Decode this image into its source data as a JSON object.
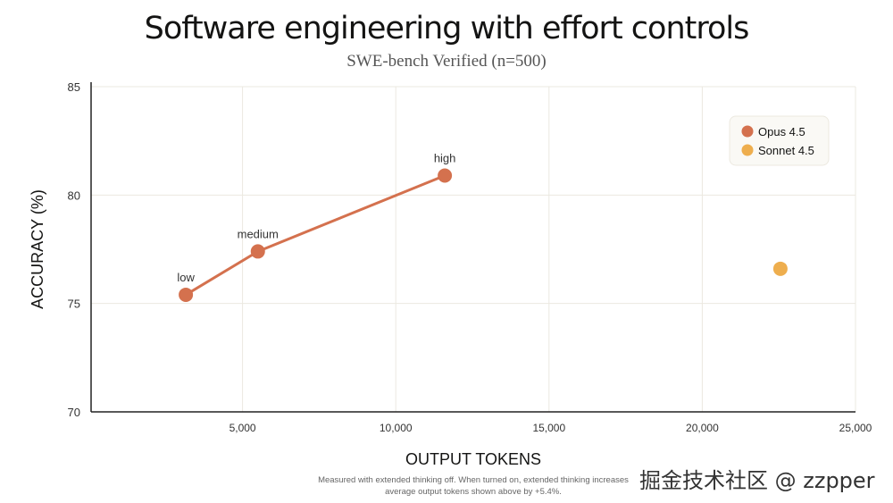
{
  "chart_data": {
    "type": "scatter",
    "title": "Software engineering with effort controls",
    "subtitle": "SWE-bench Verified (n=500)",
    "xlabel": "OUTPUT TOKENS",
    "ylabel": "ACCURACY (%)",
    "xlim": [
      0,
      25000
    ],
    "ylim": [
      70,
      85
    ],
    "xticks": [
      "5,000",
      "10,000",
      "15,000",
      "20,000",
      "25,000"
    ],
    "xtick_values": [
      5000,
      10000,
      15000,
      20000,
      25000
    ],
    "yticks": [
      "70",
      "75",
      "80",
      "85"
    ],
    "ytick_values": [
      70,
      75,
      80,
      85
    ],
    "grid": true,
    "legend_position": "top-right",
    "series": [
      {
        "name": "Opus 4.5",
        "color": "#d4714e",
        "connected": true,
        "points": [
          {
            "label": "low",
            "x": 3150,
            "y": 75.4
          },
          {
            "label": "medium",
            "x": 5500,
            "y": 77.4
          },
          {
            "label": "high",
            "x": 11600,
            "y": 80.9
          }
        ]
      },
      {
        "name": "Sonnet 4.5",
        "color": "#eeae4e",
        "connected": false,
        "points": [
          {
            "label": "",
            "x": 22550,
            "y": 76.6
          }
        ]
      }
    ],
    "footnote": "Measured with extended thinking off. When turned on, extended thinking increases average output tokens shown above by +5.4%."
  },
  "watermark": "掘金技术社区 @ zzpper"
}
